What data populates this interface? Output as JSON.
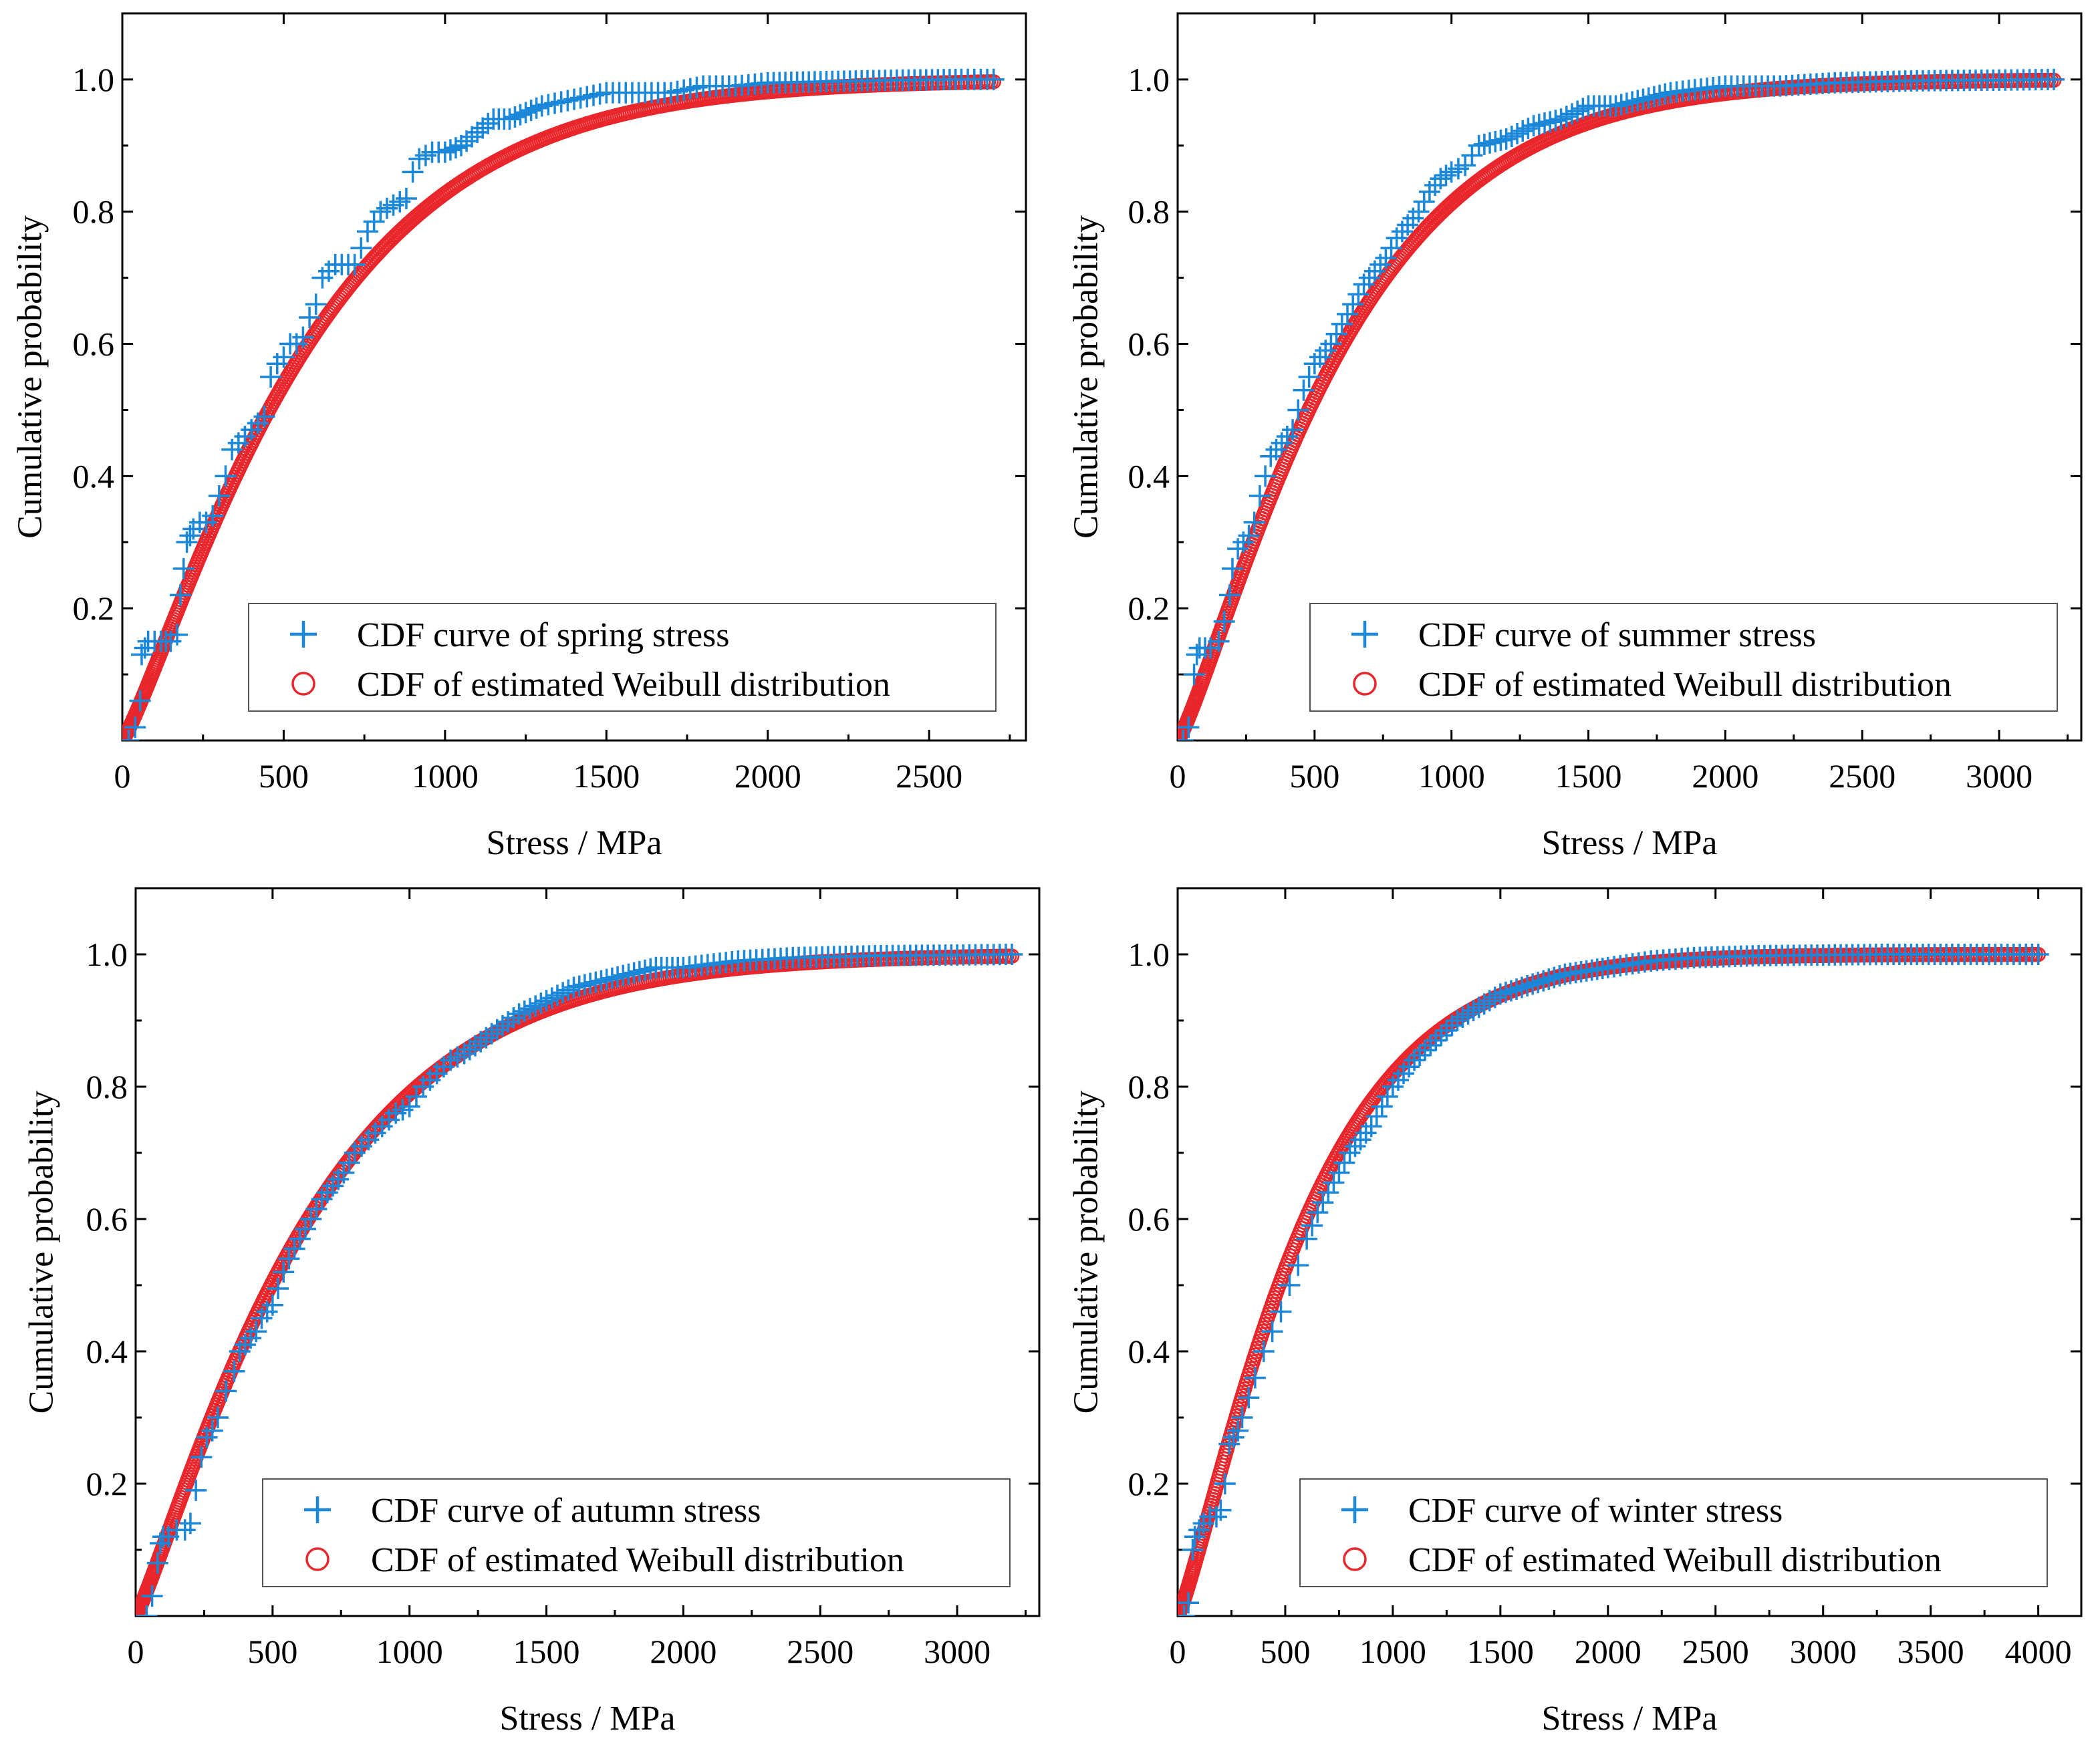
{
  "chart_data": [
    {
      "type": "scatter",
      "xlabel": "Stress / MPa",
      "ylabel": "Cumulative probability",
      "xlim": [
        0,
        2800
      ],
      "ylim": [
        0,
        1.1
      ],
      "xticks": [
        0,
        500,
        1000,
        1500,
        2000,
        2500
      ],
      "yticks": [
        0.2,
        0.4,
        0.6,
        0.8,
        1.0
      ],
      "x_max_data": 2700,
      "grid": false,
      "legend_position": "bottom-right",
      "series": [
        {
          "name": "CDF curve of spring stress",
          "marker": "plus",
          "color": "#1a87d8",
          "x": [
            20,
            40,
            55,
            60,
            70,
            80,
            100,
            120,
            150,
            170,
            180,
            190,
            200,
            210,
            220,
            240,
            260,
            280,
            300,
            320,
            340,
            360,
            380,
            400,
            420,
            440,
            460,
            480,
            500,
            520,
            540,
            560,
            580,
            600,
            620,
            640,
            660,
            680,
            700,
            720,
            760,
            800,
            840,
            880,
            900,
            920,
            960,
            1000,
            1050,
            1100,
            1150,
            1200,
            1250,
            1300,
            1400,
            1500,
            1600,
            1700,
            1800,
            1900,
            2000,
            2200,
            2400,
            2600,
            2700
          ],
          "y": [
            0.0,
            0.02,
            0.06,
            0.13,
            0.14,
            0.15,
            0.15,
            0.15,
            0.15,
            0.16,
            0.22,
            0.26,
            0.3,
            0.31,
            0.32,
            0.33,
            0.33,
            0.34,
            0.37,
            0.4,
            0.44,
            0.45,
            0.46,
            0.47,
            0.48,
            0.49,
            0.55,
            0.57,
            0.58,
            0.6,
            0.6,
            0.61,
            0.64,
            0.66,
            0.7,
            0.71,
            0.72,
            0.72,
            0.72,
            0.72,
            0.77,
            0.8,
            0.81,
            0.82,
            0.86,
            0.88,
            0.89,
            0.89,
            0.9,
            0.92,
            0.94,
            0.94,
            0.95,
            0.96,
            0.97,
            0.98,
            0.98,
            0.98,
            0.99,
            0.99,
            0.995,
            0.997,
            0.999,
            1.0,
            1.0
          ]
        },
        {
          "name": "CDF of estimated Weibull distribution",
          "marker": "circle",
          "color": "#e8262b",
          "weibull_scale": 620,
          "weibull_shape": 1.18
        }
      ]
    },
    {
      "type": "scatter",
      "xlabel": "Stress / MPa",
      "ylabel": "Cumulative probability",
      "xlim": [
        0,
        3300
      ],
      "ylim": [
        0,
        1.1
      ],
      "xticks": [
        0,
        500,
        1000,
        1500,
        2000,
        2500,
        3000
      ],
      "yticks": [
        0.2,
        0.4,
        0.6,
        0.8,
        1.0
      ],
      "x_max_data": 3200,
      "grid": false,
      "legend_position": "bottom-right",
      "series": [
        {
          "name": "CDF curve of summer stress",
          "marker": "plus",
          "color": "#1a87d8",
          "x": [
            20,
            40,
            60,
            70,
            80,
            100,
            120,
            150,
            170,
            190,
            200,
            220,
            240,
            260,
            280,
            300,
            320,
            340,
            360,
            380,
            400,
            420,
            440,
            460,
            480,
            500,
            520,
            560,
            600,
            640,
            680,
            720,
            760,
            800,
            840,
            880,
            920,
            960,
            1000,
            1050,
            1100,
            1200,
            1300,
            1400,
            1500,
            1600,
            1700,
            1800,
            2000,
            2200,
            2400,
            2700,
            3000,
            3200
          ],
          "y": [
            0.0,
            0.02,
            0.1,
            0.13,
            0.14,
            0.14,
            0.14,
            0.15,
            0.18,
            0.22,
            0.26,
            0.29,
            0.3,
            0.31,
            0.33,
            0.37,
            0.4,
            0.43,
            0.44,
            0.45,
            0.46,
            0.47,
            0.5,
            0.53,
            0.55,
            0.57,
            0.58,
            0.6,
            0.63,
            0.66,
            0.69,
            0.71,
            0.73,
            0.76,
            0.78,
            0.8,
            0.83,
            0.85,
            0.86,
            0.87,
            0.9,
            0.91,
            0.93,
            0.94,
            0.96,
            0.96,
            0.97,
            0.98,
            0.99,
            0.99,
            0.995,
            0.998,
            0.999,
            1.0
          ]
        },
        {
          "name": "CDF of estimated Weibull distribution",
          "marker": "circle",
          "color": "#e8262b",
          "weibull_scale": 650,
          "weibull_shape": 1.2
        }
      ]
    },
    {
      "type": "scatter",
      "xlabel": "Stress / MPa",
      "ylabel": "Cumulative probability",
      "xlim": [
        0,
        3300
      ],
      "ylim": [
        0,
        1.1
      ],
      "xticks": [
        0,
        500,
        1000,
        1500,
        2000,
        2500,
        3000
      ],
      "yticks": [
        0.2,
        0.4,
        0.6,
        0.8,
        1.0
      ],
      "x_max_data": 3200,
      "grid": false,
      "legend_position": "bottom-right",
      "series": [
        {
          "name": "CDF curve of autumn stress",
          "marker": "plus",
          "color": "#1a87d8",
          "x": [
            40,
            60,
            80,
            90,
            100,
            120,
            150,
            180,
            200,
            220,
            240,
            260,
            280,
            300,
            330,
            360,
            380,
            400,
            420,
            440,
            460,
            500,
            540,
            560,
            600,
            640,
            680,
            720,
            760,
            800,
            850,
            900,
            950,
            1000,
            1050,
            1100,
            1150,
            1200,
            1300,
            1400,
            1500,
            1600,
            1700,
            1800,
            1900,
            2000,
            2200,
            2400,
            2700,
            3000,
            3200
          ],
          "y": [
            0.0,
            0.03,
            0.08,
            0.11,
            0.12,
            0.12,
            0.13,
            0.13,
            0.14,
            0.19,
            0.24,
            0.27,
            0.28,
            0.3,
            0.34,
            0.37,
            0.4,
            0.41,
            0.42,
            0.43,
            0.45,
            0.47,
            0.52,
            0.54,
            0.57,
            0.6,
            0.63,
            0.65,
            0.67,
            0.7,
            0.72,
            0.74,
            0.76,
            0.77,
            0.8,
            0.82,
            0.84,
            0.85,
            0.88,
            0.91,
            0.93,
            0.95,
            0.96,
            0.97,
            0.98,
            0.98,
            0.99,
            0.995,
            0.998,
            0.999,
            1.0
          ]
        },
        {
          "name": "CDF of estimated Weibull distribution",
          "marker": "circle",
          "color": "#e8262b",
          "weibull_scale": 680,
          "weibull_shape": 1.15
        }
      ]
    },
    {
      "type": "scatter",
      "xlabel": "Stress / MPa",
      "ylabel": "Cumulative probability",
      "xlim": [
        0,
        4200
      ],
      "ylim": [
        0,
        1.1
      ],
      "xticks": [
        0,
        500,
        1000,
        1500,
        2000,
        2500,
        3000,
        3500,
        4000
      ],
      "yticks": [
        0.2,
        0.4,
        0.6,
        0.8,
        1.0
      ],
      "x_max_data": 4000,
      "grid": false,
      "legend_position": "bottom-right",
      "series": [
        {
          "name": "CDF curve of winter stress",
          "marker": "plus",
          "color": "#1a87d8",
          "x": [
            30,
            50,
            70,
            80,
            100,
            120,
            150,
            180,
            200,
            220,
            240,
            260,
            280,
            300,
            330,
            360,
            400,
            440,
            480,
            520,
            560,
            600,
            650,
            700,
            750,
            800,
            850,
            900,
            950,
            1000,
            1100,
            1200,
            1300,
            1400,
            1500,
            1600,
            1700,
            1800,
            1900,
            2000,
            2200,
            2400,
            2700,
            3000,
            3300,
            3600,
            4000
          ],
          "y": [
            0.0,
            0.02,
            0.1,
            0.12,
            0.13,
            0.14,
            0.15,
            0.15,
            0.16,
            0.2,
            0.26,
            0.27,
            0.28,
            0.3,
            0.33,
            0.36,
            0.4,
            0.43,
            0.46,
            0.5,
            0.53,
            0.57,
            0.61,
            0.64,
            0.67,
            0.7,
            0.72,
            0.74,
            0.77,
            0.8,
            0.84,
            0.87,
            0.9,
            0.92,
            0.94,
            0.95,
            0.96,
            0.97,
            0.975,
            0.98,
            0.99,
            0.995,
            0.998,
            0.999,
            1.0,
            1.0,
            1.0
          ]
        },
        {
          "name": "CDF of estimated Weibull distribution",
          "marker": "circle",
          "color": "#e8262b",
          "weibull_scale": 640,
          "weibull_shape": 1.2
        }
      ]
    }
  ]
}
